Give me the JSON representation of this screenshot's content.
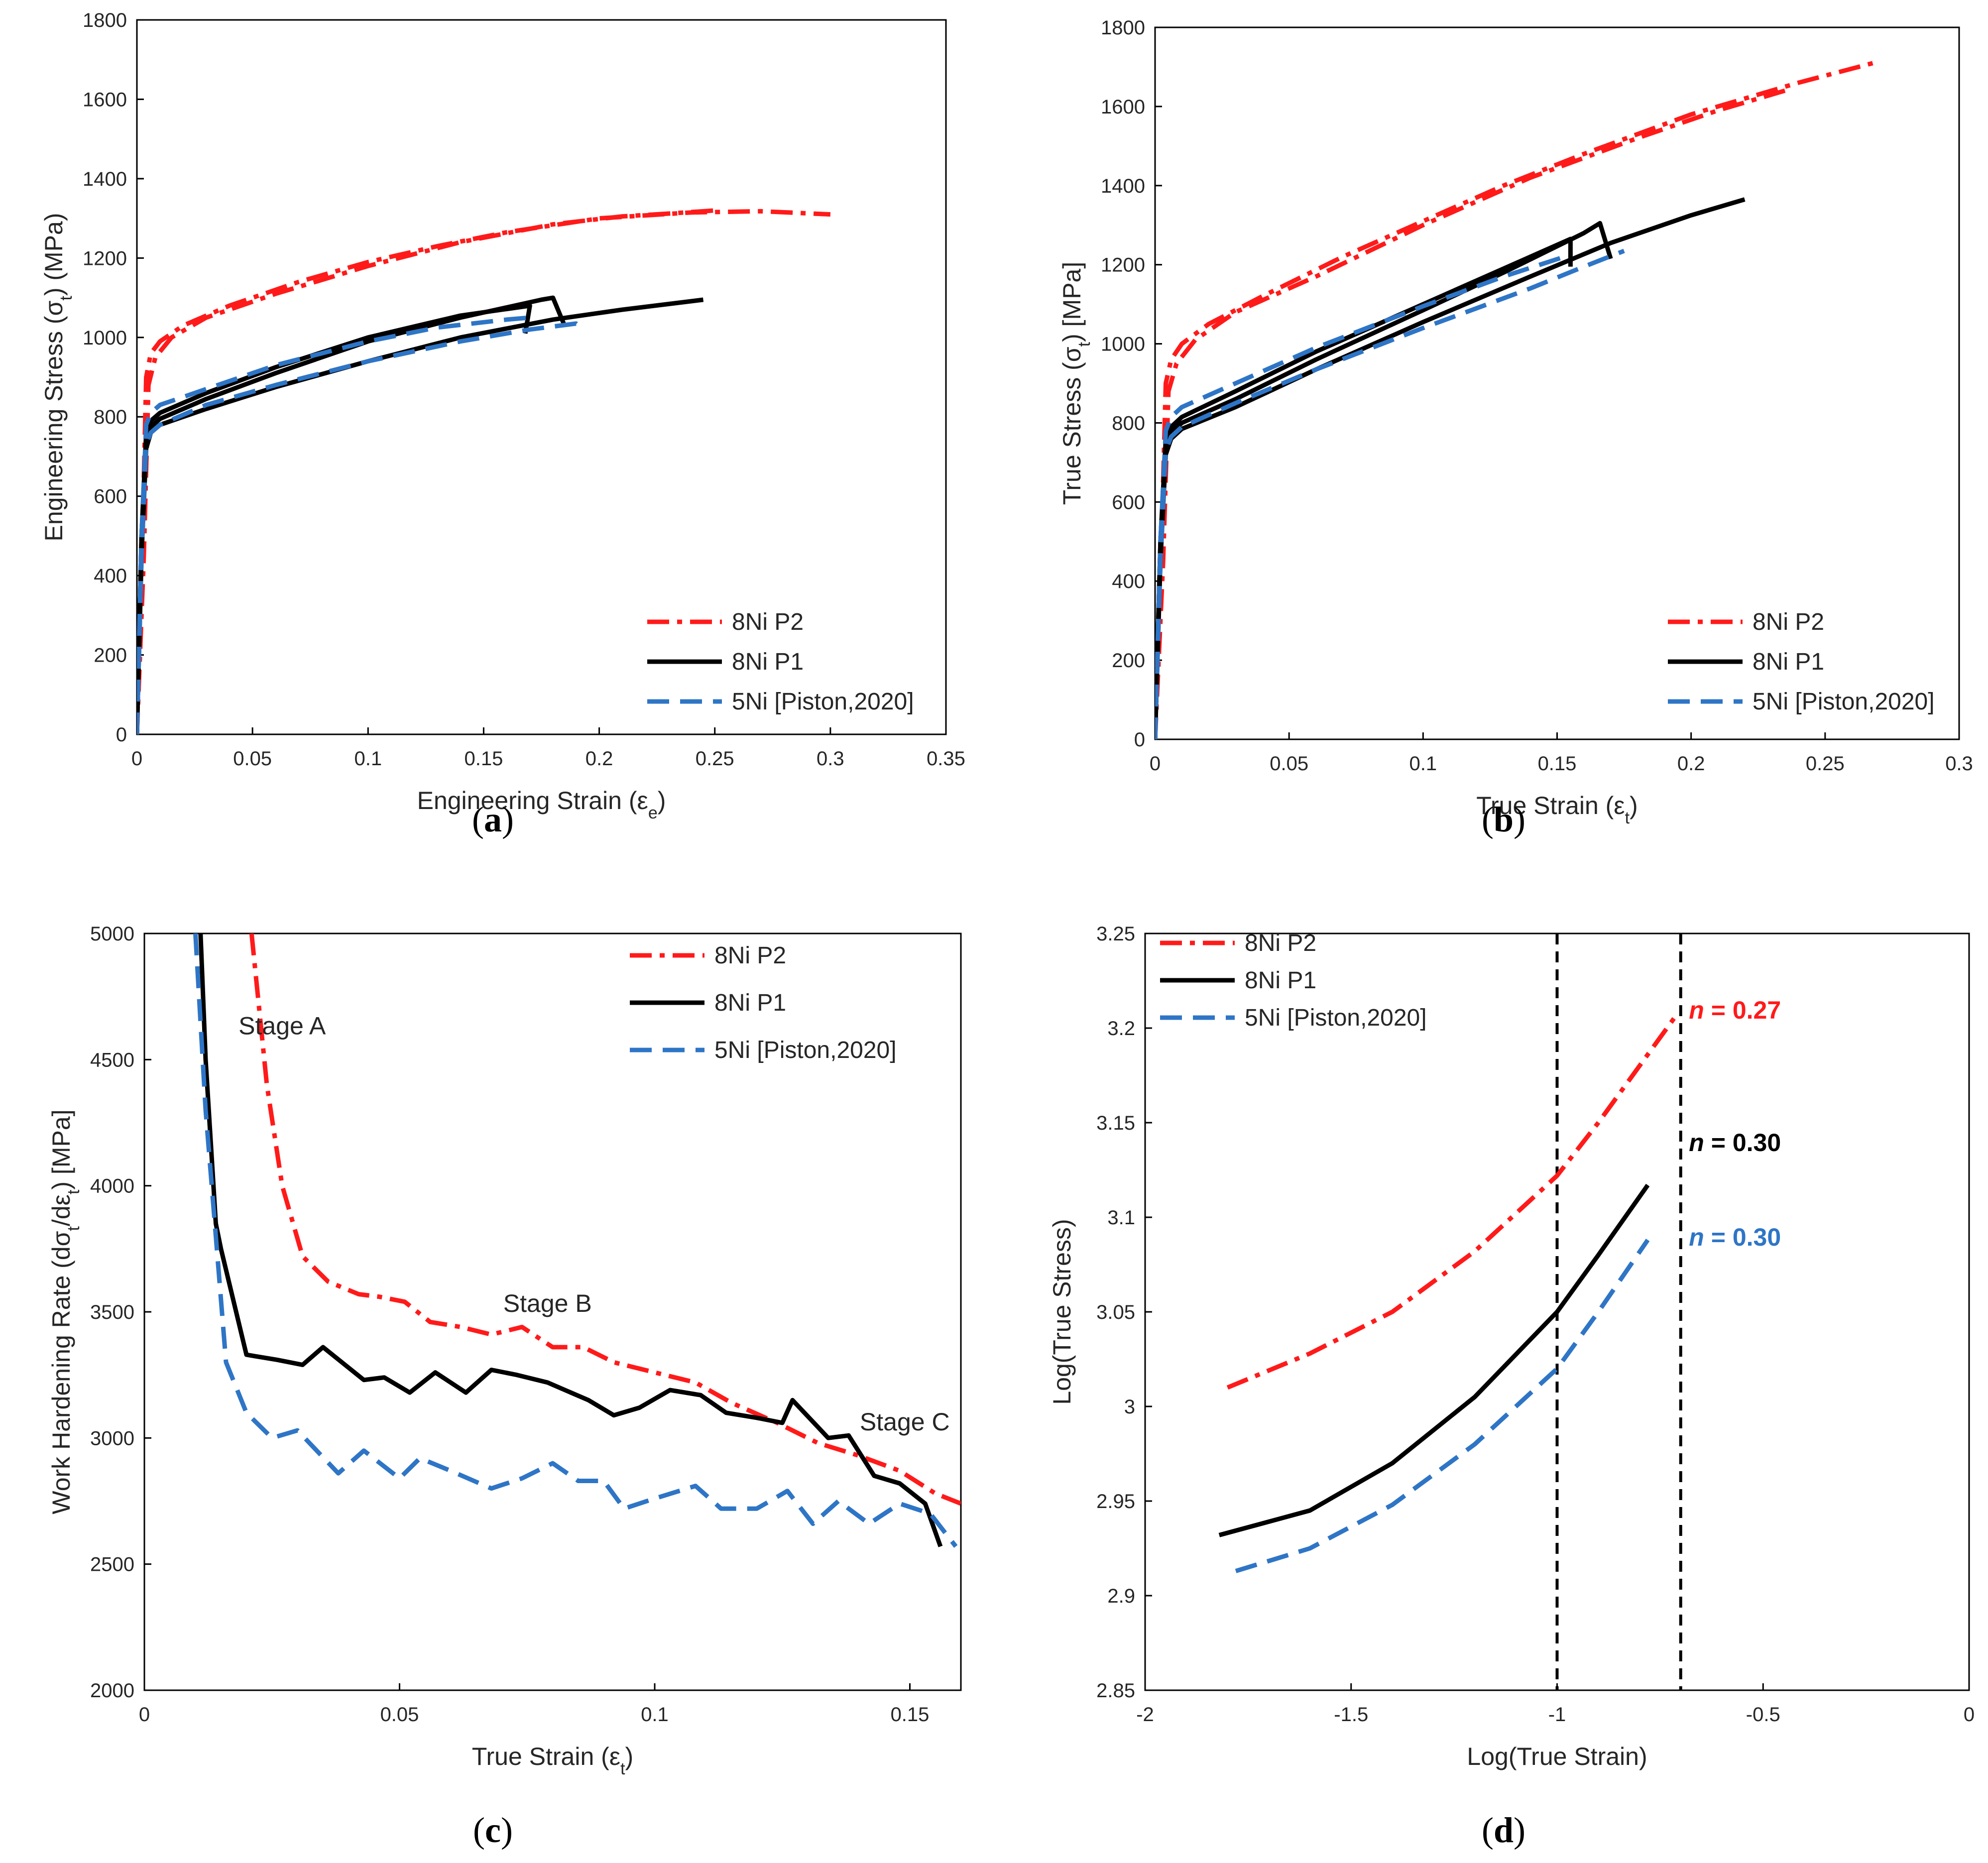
{
  "colors": {
    "p2": "#ff1a1a",
    "p1": "#000000",
    "n5": "#2e75c6",
    "frame": "#000000",
    "text": "#262626"
  },
  "chart_data": [
    {
      "id": "a",
      "type": "line",
      "caption": {
        "letter": "a"
      },
      "xlabel": {
        "main": "Engineering Strain (ε",
        "sub": "e",
        "tail": ")"
      },
      "ylabel": {
        "main": "Engineering Stress (σ",
        "sub": "t",
        "tail": ") (MPa)"
      },
      "xlim": [
        0,
        0.35
      ],
      "ylim": [
        0,
        1800
      ],
      "xticks": [
        "0",
        "0.05",
        "0.1",
        "0.15",
        "0.2",
        "0.25",
        "0.3",
        "0.35"
      ],
      "xtick_values": [
        0,
        0.05,
        0.1,
        0.15,
        0.2,
        0.25,
        0.3,
        0.35
      ],
      "yticks": [
        "0",
        "200",
        "400",
        "600",
        "800",
        "1000",
        "1200",
        "1400",
        "1600",
        "1800"
      ],
      "ytick_values": [
        0,
        200,
        400,
        600,
        800,
        1000,
        1200,
        1400,
        1600,
        1800
      ],
      "legend_position": "bottom-right",
      "legend": [
        "8Ni P2",
        "8Ni P1",
        "5Ni [Piston,2020]"
      ],
      "series": [
        {
          "name": "8Ni P2",
          "color_key": "p2",
          "style": "dashdot",
          "x": [
            0,
            0.002,
            0.004,
            0.006,
            0.01,
            0.02,
            0.04,
            0.07,
            0.1,
            0.13,
            0.16,
            0.2,
            0.24,
            0.27,
            0.3
          ],
          "y": [
            0,
            400,
            900,
            960,
            990,
            1030,
            1080,
            1140,
            1190,
            1230,
            1265,
            1300,
            1315,
            1318,
            1310
          ]
        },
        {
          "name": "8Ni P2",
          "color_key": "p2",
          "style": "dashdot",
          "x": [
            0,
            0.003,
            0.005,
            0.008,
            0.015,
            0.03,
            0.06,
            0.1,
            0.14,
            0.18,
            0.21,
            0.23,
            0.25
          ],
          "y": [
            0,
            450,
            880,
            950,
            1000,
            1050,
            1110,
            1180,
            1240,
            1285,
            1305,
            1312,
            1320
          ]
        },
        {
          "name": "8Ni P1",
          "color_key": "p1",
          "style": "solid",
          "x": [
            0,
            0.002,
            0.004,
            0.006,
            0.01,
            0.03,
            0.06,
            0.1,
            0.14,
            0.17,
            0.168
          ],
          "y": [
            0,
            500,
            760,
            790,
            810,
            860,
            925,
            1000,
            1055,
            1080,
            1010
          ]
        },
        {
          "name": "8Ni P1",
          "color_key": "p1",
          "style": "solid",
          "x": [
            0,
            0.002,
            0.004,
            0.006,
            0.01,
            0.03,
            0.06,
            0.1,
            0.14,
            0.175,
            0.18,
            0.185
          ],
          "y": [
            0,
            500,
            740,
            775,
            795,
            845,
            910,
            990,
            1050,
            1095,
            1100,
            1030
          ]
        },
        {
          "name": "8Ni P1",
          "color_key": "p1",
          "style": "solid",
          "x": [
            0,
            0.002,
            0.004,
            0.006,
            0.01,
            0.03,
            0.06,
            0.1,
            0.14,
            0.18,
            0.21,
            0.245
          ],
          "y": [
            0,
            450,
            720,
            760,
            780,
            820,
            875,
            940,
            1000,
            1045,
            1070,
            1095
          ]
        },
        {
          "name": "5Ni [Piston,2020]",
          "color_key": "n5",
          "style": "dashed",
          "x": [
            0,
            0.002,
            0.004,
            0.006,
            0.01,
            0.03,
            0.06,
            0.1,
            0.13,
            0.16,
            0.17
          ],
          "y": [
            0,
            500,
            780,
            810,
            830,
            870,
            930,
            990,
            1025,
            1045,
            1050
          ]
        },
        {
          "name": "5Ni [Piston,2020]",
          "color_key": "n5",
          "style": "dashed",
          "x": [
            0,
            0.002,
            0.004,
            0.006,
            0.01,
            0.03,
            0.06,
            0.1,
            0.14,
            0.17,
            0.19,
            0.192
          ],
          "y": [
            0,
            450,
            730,
            760,
            780,
            830,
            880,
            940,
            990,
            1020,
            1035,
            1025
          ]
        }
      ]
    },
    {
      "id": "b",
      "type": "line",
      "caption": {
        "letter": "b"
      },
      "xlabel": {
        "main": "True Strain (ε",
        "sub": "t",
        "tail": ")"
      },
      "ylabel": {
        "main": "True Stress (σ",
        "sub": "t",
        "tail": ") [MPa]"
      },
      "xlim": [
        0,
        0.3
      ],
      "ylim": [
        0,
        1800
      ],
      "xticks": [
        "0",
        "0.05",
        "0.1",
        "0.15",
        "0.2",
        "0.25",
        "0.3"
      ],
      "xtick_values": [
        0,
        0.05,
        0.1,
        0.15,
        0.2,
        0.25,
        0.3
      ],
      "yticks": [
        "0",
        "200",
        "400",
        "600",
        "800",
        "1000",
        "1200",
        "1400",
        "1600",
        "1800"
      ],
      "ytick_values": [
        0,
        200,
        400,
        600,
        800,
        1000,
        1200,
        1400,
        1600,
        1800
      ],
      "legend_position": "bottom-right",
      "legend": [
        "8Ni P2",
        "8Ni P1",
        "5Ni [Piston,2020]"
      ],
      "series": [
        {
          "name": "8Ni P2",
          "color_key": "p2",
          "style": "dashdot",
          "x": [
            0,
            0.002,
            0.004,
            0.006,
            0.01,
            0.02,
            0.04,
            0.07,
            0.1,
            0.13,
            0.16,
            0.2,
            0.24,
            0.268
          ],
          "y": [
            0,
            400,
            900,
            960,
            1000,
            1050,
            1120,
            1220,
            1310,
            1400,
            1480,
            1580,
            1660,
            1710
          ]
        },
        {
          "name": "8Ni P2",
          "color_key": "p2",
          "style": "dashdot",
          "x": [
            0,
            0.003,
            0.005,
            0.008,
            0.015,
            0.03,
            0.06,
            0.1,
            0.14,
            0.18,
            0.21,
            0.235
          ],
          "y": [
            0,
            450,
            880,
            950,
            1010,
            1080,
            1170,
            1300,
            1420,
            1520,
            1590,
            1640
          ]
        },
        {
          "name": "8Ni P1",
          "color_key": "p1",
          "style": "solid",
          "x": [
            0,
            0.002,
            0.004,
            0.006,
            0.01,
            0.03,
            0.06,
            0.1,
            0.13,
            0.155,
            0.155
          ],
          "y": [
            0,
            500,
            760,
            790,
            815,
            880,
            980,
            1100,
            1190,
            1265,
            1195
          ]
        },
        {
          "name": "8Ni P1",
          "color_key": "p1",
          "style": "solid",
          "x": [
            0,
            0.002,
            0.004,
            0.006,
            0.01,
            0.03,
            0.06,
            0.1,
            0.13,
            0.16,
            0.166,
            0.17
          ],
          "y": [
            0,
            500,
            740,
            775,
            800,
            860,
            960,
            1085,
            1180,
            1280,
            1305,
            1215
          ]
        },
        {
          "name": "8Ni P1",
          "color_key": "p1",
          "style": "solid",
          "x": [
            0,
            0.002,
            0.004,
            0.006,
            0.01,
            0.03,
            0.06,
            0.1,
            0.14,
            0.17,
            0.2,
            0.22
          ],
          "y": [
            0,
            450,
            720,
            760,
            785,
            840,
            935,
            1055,
            1170,
            1255,
            1325,
            1365
          ]
        },
        {
          "name": "5Ni [Piston,2020]",
          "color_key": "n5",
          "style": "dashed",
          "x": [
            0,
            0.002,
            0.004,
            0.006,
            0.01,
            0.03,
            0.06,
            0.1,
            0.13,
            0.155
          ],
          "y": [
            0,
            500,
            780,
            815,
            840,
            900,
            990,
            1095,
            1170,
            1225
          ]
        },
        {
          "name": "5Ni [Piston,2020]",
          "color_key": "n5",
          "style": "dashed",
          "x": [
            0,
            0.002,
            0.004,
            0.006,
            0.01,
            0.03,
            0.06,
            0.1,
            0.14,
            0.16,
            0.175
          ],
          "y": [
            0,
            450,
            730,
            765,
            790,
            850,
            935,
            1040,
            1140,
            1195,
            1235
          ]
        }
      ]
    },
    {
      "id": "c",
      "type": "line",
      "caption": {
        "letter": "c"
      },
      "xlabel": {
        "main": "True Strain (ε",
        "sub": "t",
        "tail": ")"
      },
      "ylabel": {
        "main": "Work Hardening Rate (dσ",
        "sub": "t",
        "mid": "/dε",
        "sub2": "t",
        "tail": ") [MPa]"
      },
      "xlim": [
        0,
        0.16
      ],
      "ylim": [
        2000,
        5000
      ],
      "xticks": [
        "0",
        "0.05",
        "0.1",
        "0.15"
      ],
      "xtick_values": [
        0,
        0.05,
        0.1,
        0.15
      ],
      "yticks": [
        "2000",
        "2500",
        "3000",
        "3500",
        "4000",
        "4500",
        "5000"
      ],
      "ytick_values": [
        2000,
        2500,
        3000,
        3500,
        4000,
        4500,
        5000
      ],
      "legend_position": "top-right",
      "legend": [
        "8Ni P2",
        "8Ni P1",
        "5Ni [Piston,2020]"
      ],
      "annotations": [
        {
          "text": "Stage A",
          "x": 0.027,
          "y": 4600
        },
        {
          "text": "Stage B",
          "x": 0.079,
          "y": 3500
        },
        {
          "text": "Stage C",
          "x": 0.149,
          "y": 3030
        }
      ],
      "series": [
        {
          "name": "8Ni P2",
          "color_key": "p2",
          "style": "dashdot",
          "x": [
            0.021,
            0.024,
            0.027,
            0.031,
            0.036,
            0.042,
            0.046,
            0.051,
            0.056,
            0.062,
            0.068,
            0.074,
            0.08,
            0.086,
            0.092,
            0.1,
            0.108,
            0.115,
            0.124,
            0.132,
            0.14,
            0.148,
            0.155,
            0.16
          ],
          "y": [
            5000,
            4400,
            4000,
            3720,
            3620,
            3570,
            3560,
            3540,
            3460,
            3440,
            3410,
            3440,
            3360,
            3360,
            3300,
            3260,
            3220,
            3140,
            3060,
            2980,
            2930,
            2870,
            2780,
            2740
          ]
        },
        {
          "name": "8Ni P1",
          "color_key": "p1",
          "style": "solid",
          "x": [
            0.011,
            0.012,
            0.014,
            0.015,
            0.02,
            0.026,
            0.031,
            0.035,
            0.043,
            0.047,
            0.052,
            0.057,
            0.063,
            0.068,
            0.073,
            0.079,
            0.087,
            0.092,
            0.097,
            0.103,
            0.109,
            0.114,
            0.12,
            0.125,
            0.127,
            0.134,
            0.138,
            0.143,
            0.148,
            0.153,
            0.156
          ],
          "y": [
            5000,
            4500,
            3850,
            3750,
            3330,
            3310,
            3290,
            3360,
            3230,
            3240,
            3180,
            3260,
            3180,
            3270,
            3250,
            3220,
            3150,
            3090,
            3120,
            3190,
            3170,
            3100,
            3080,
            3060,
            3150,
            3000,
            3010,
            2850,
            2820,
            2740,
            2570
          ]
        },
        {
          "name": "5Ni [Piston,2020]",
          "color_key": "n5",
          "style": "dashed",
          "x": [
            0.01,
            0.012,
            0.014,
            0.016,
            0.02,
            0.025,
            0.03,
            0.038,
            0.043,
            0.05,
            0.054,
            0.06,
            0.068,
            0.074,
            0.08,
            0.085,
            0.09,
            0.094,
            0.1,
            0.108,
            0.113,
            0.12,
            0.126,
            0.131,
            0.136,
            0.142,
            0.148,
            0.154,
            0.159
          ],
          "y": [
            5000,
            4300,
            3800,
            3300,
            3100,
            3000,
            3030,
            2860,
            2950,
            2840,
            2920,
            2870,
            2800,
            2840,
            2900,
            2830,
            2830,
            2720,
            2760,
            2810,
            2720,
            2720,
            2790,
            2660,
            2750,
            2660,
            2740,
            2700,
            2570
          ]
        }
      ]
    },
    {
      "id": "d",
      "type": "line",
      "caption": {
        "letter": "d"
      },
      "xlabel": {
        "main": "Log(True Strain)"
      },
      "ylabel": {
        "main": "Log(True Stress)"
      },
      "xlim": [
        -2,
        0
      ],
      "ylim": [
        2.85,
        3.25
      ],
      "xticks": [
        "-2",
        "-1.5",
        "-1",
        "-0.5",
        "0"
      ],
      "xtick_values": [
        -2,
        -1.5,
        -1,
        -0.5,
        0
      ],
      "yticks": [
        "2.85",
        "2.9",
        "2.95",
        "3",
        "3.05",
        "3.1",
        "3.15",
        "3.2",
        "3.25"
      ],
      "ytick_values": [
        2.85,
        2.9,
        2.95,
        3.0,
        3.05,
        3.1,
        3.15,
        3.2,
        3.25
      ],
      "legend_position": "top-left",
      "legend": [
        "8Ni P2",
        "8Ni P1",
        "5Ni [Piston,2020]"
      ],
      "vlines": [
        -1.0,
        -0.7
      ],
      "n_labels": [
        {
          "italic": "n",
          "value": " = 0.27",
          "color_key": "p2",
          "x": -0.68,
          "y": 3.205
        },
        {
          "italic": "n",
          "value": " = 0.30",
          "color_key": "p1",
          "x": -0.68,
          "y": 3.135
        },
        {
          "italic": "n",
          "value": " = 0.30",
          "color_key": "n5",
          "x": -0.68,
          "y": 3.085
        }
      ],
      "series": [
        {
          "name": "8Ni P2",
          "color_key": "p2",
          "style": "dashdot",
          "x": [
            -1.8,
            -1.6,
            -1.4,
            -1.2,
            -1.0,
            -0.9,
            -0.8,
            -0.71
          ],
          "y": [
            3.01,
            3.028,
            3.05,
            3.082,
            3.122,
            3.15,
            3.18,
            3.207
          ]
        },
        {
          "name": "8Ni P1",
          "color_key": "p1",
          "style": "solid",
          "x": [
            -1.82,
            -1.6,
            -1.4,
            -1.2,
            -1.0,
            -0.9,
            -0.78
          ],
          "y": [
            2.932,
            2.945,
            2.97,
            3.005,
            3.05,
            3.08,
            3.117
          ]
        },
        {
          "name": "5Ni [Piston,2020]",
          "color_key": "n5",
          "style": "dashed",
          "x": [
            -1.78,
            -1.6,
            -1.4,
            -1.2,
            -1.0,
            -0.9,
            -0.78
          ],
          "y": [
            2.913,
            2.925,
            2.948,
            2.98,
            3.02,
            3.05,
            3.088
          ]
        }
      ]
    }
  ]
}
